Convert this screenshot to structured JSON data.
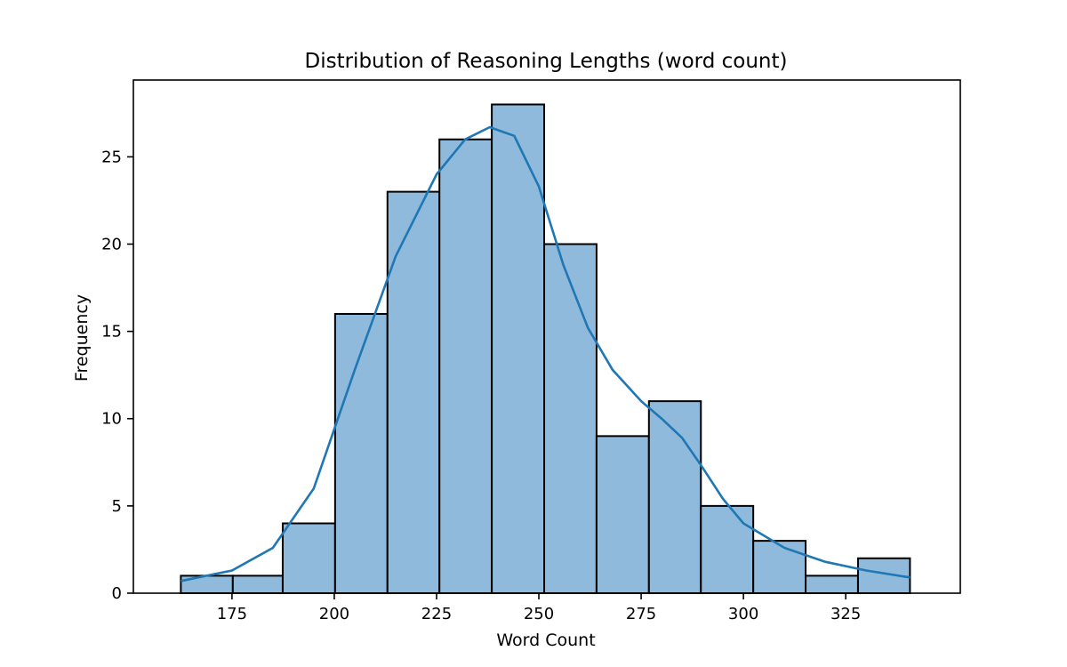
{
  "chart_data": {
    "type": "bar",
    "title": "Distribution of Reasoning Lengths (word count)",
    "xlabel": "Word Count",
    "ylabel": "Frequency",
    "xlim": [
      150.9,
      353
    ],
    "ylim": [
      0,
      29.4
    ],
    "x_ticks": [
      175,
      200,
      225,
      250,
      275,
      300,
      325
    ],
    "y_ticks": [
      0,
      5,
      10,
      15,
      20,
      25
    ],
    "bins": [
      {
        "start": 162.5,
        "end": 175.2,
        "count": 1
      },
      {
        "start": 175.2,
        "end": 187.4,
        "count": 1
      },
      {
        "start": 187.4,
        "end": 200.2,
        "count": 4
      },
      {
        "start": 200.2,
        "end": 213.0,
        "count": 16
      },
      {
        "start": 213.0,
        "end": 225.7,
        "count": 23
      },
      {
        "start": 225.7,
        "end": 238.5,
        "count": 26
      },
      {
        "start": 238.5,
        "end": 251.3,
        "count": 28
      },
      {
        "start": 251.3,
        "end": 264.1,
        "count": 20
      },
      {
        "start": 264.1,
        "end": 276.9,
        "count": 9
      },
      {
        "start": 276.9,
        "end": 289.6,
        "count": 11
      },
      {
        "start": 289.6,
        "end": 302.4,
        "count": 5
      },
      {
        "start": 302.4,
        "end": 315.2,
        "count": 3
      },
      {
        "start": 315.2,
        "end": 328.0,
        "count": 1
      },
      {
        "start": 328.0,
        "end": 340.7,
        "count": 2
      }
    ],
    "kde": {
      "x": [
        162.5,
        175,
        185,
        195,
        205,
        215,
        225,
        232,
        238,
        244,
        250,
        256,
        262,
        268,
        275,
        280,
        285,
        290,
        295,
        300,
        310,
        320,
        330,
        340.7
      ],
      "y": [
        0.7,
        1.3,
        2.6,
        6.0,
        12.8,
        19.3,
        24.0,
        26.0,
        26.7,
        26.2,
        23.3,
        18.8,
        15.2,
        12.8,
        11.0,
        10.0,
        8.9,
        7.2,
        5.4,
        4.0,
        2.6,
        1.8,
        1.3,
        0.9
      ]
    },
    "grid": false,
    "legend": "none"
  }
}
